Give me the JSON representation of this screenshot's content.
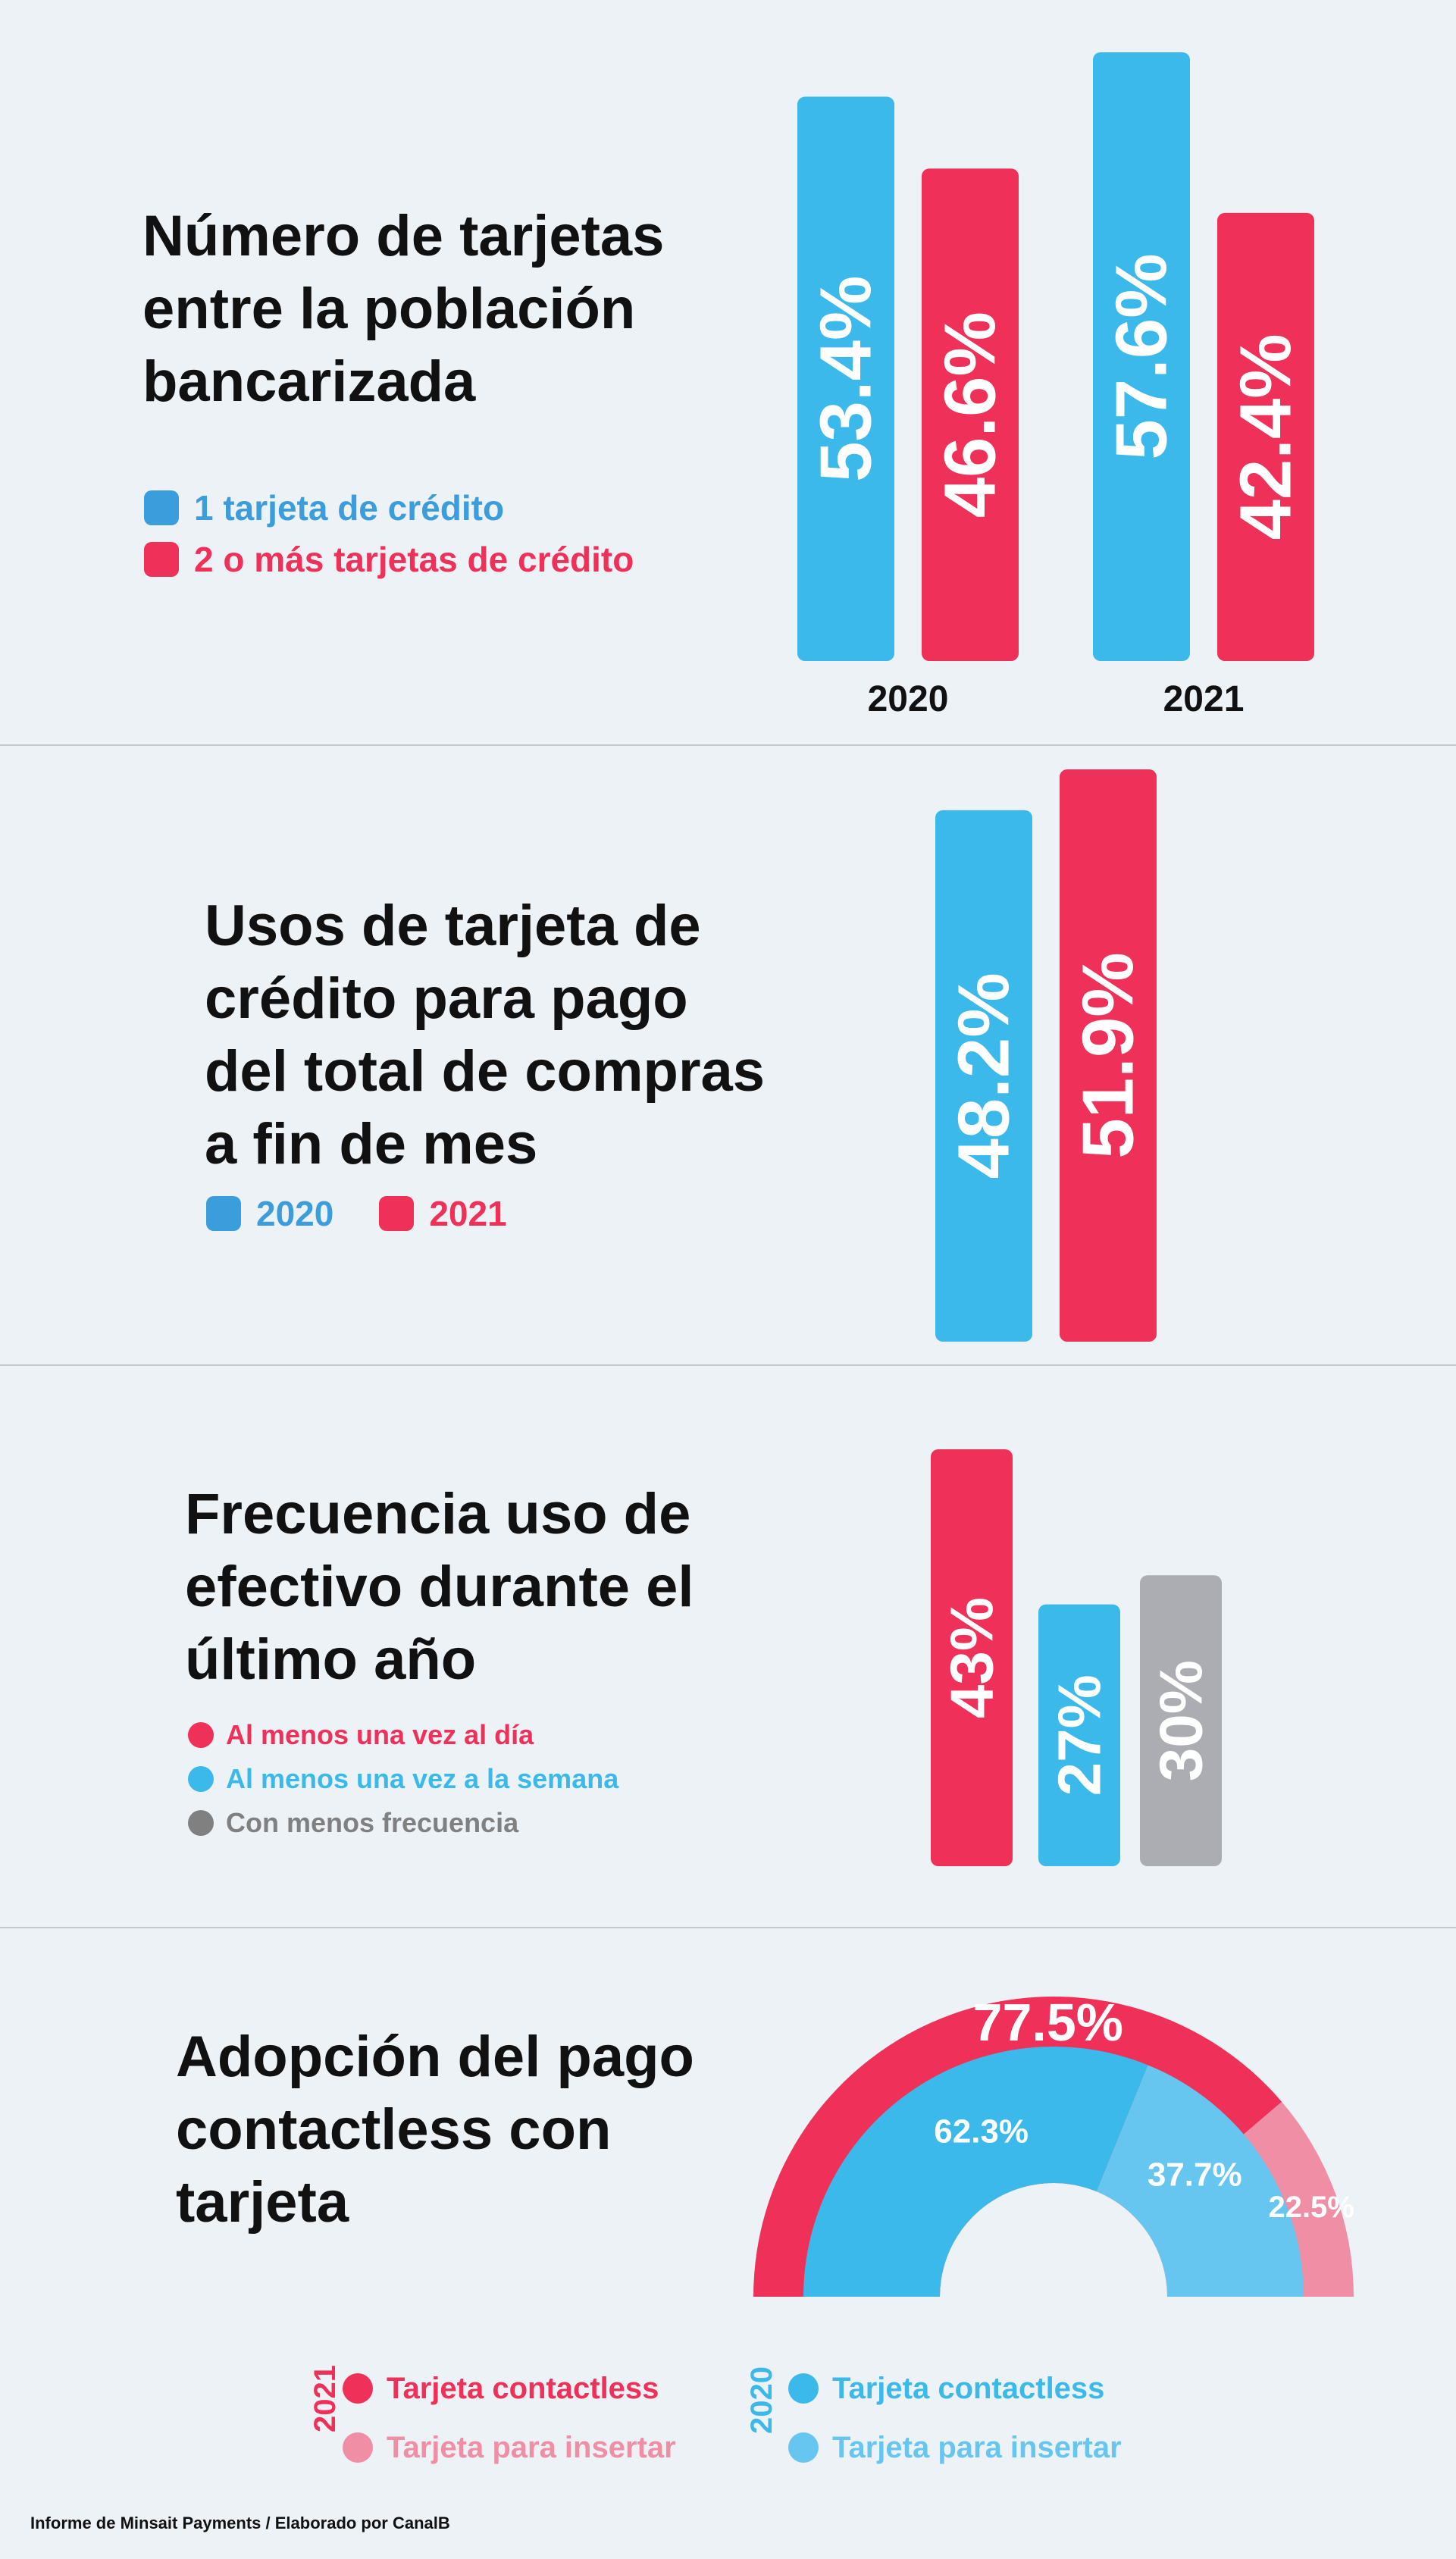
{
  "colors": {
    "blue": "#3bb9ea",
    "red": "#ef3058",
    "gray": "#acadb2",
    "pink": "#ef8ea4",
    "lightblue": "#67c6ef"
  },
  "section1": {
    "title": [
      "Número de tarjetas",
      "entre la población",
      "bancarizada"
    ],
    "legend": [
      {
        "label": "1 tarjeta de crédito",
        "color": "#3b9ddb"
      },
      {
        "label": "2 o más tarjetas de crédito",
        "color": "#ef3058"
      }
    ]
  },
  "section2": {
    "title": [
      "Usos de tarjeta de",
      "crédito para pago",
      "del total de compras",
      "a fin de mes"
    ],
    "legend": [
      {
        "label": "2020",
        "color": "#3b9ddb"
      },
      {
        "label": "2021",
        "color": "#ef3058"
      }
    ]
  },
  "section3": {
    "title": [
      "Frecuencia uso de",
      "efectivo durante el",
      "último año"
    ],
    "legend": [
      {
        "label": "Al menos una vez al día",
        "color": "#ef3058"
      },
      {
        "label": "Al menos una vez a la semana",
        "color": "#3bb9ea"
      },
      {
        "label": "Con menos frecuencia",
        "color": "#808080"
      }
    ]
  },
  "section4": {
    "title": [
      "Adopción del pago",
      "contactless con",
      "tarjeta"
    ],
    "legend_2021": {
      "year": "2021",
      "items": [
        {
          "label": "Tarjeta contactless",
          "color": "#ef3058"
        },
        {
          "label": "Tarjeta para insertar",
          "color": "#ef8ea4"
        }
      ]
    },
    "legend_2020": {
      "year": "2020",
      "items": [
        {
          "label": "Tarjeta contactless",
          "color": "#3bb9ea"
        },
        {
          "label": "Tarjeta para insertar",
          "color": "#67c6ef"
        }
      ]
    }
  },
  "source": "Informe de Minsait Payments / Elaborado por CanalB",
  "chart_data": [
    {
      "type": "bar",
      "title": "Número de tarjetas entre la población bancarizada",
      "categories": [
        "2020",
        "2021"
      ],
      "series": [
        {
          "name": "1 tarjeta de crédito",
          "values": [
            53.4,
            57.6
          ],
          "labels": [
            "53.4%",
            "57.6%"
          ],
          "color": "#3bb9ea"
        },
        {
          "name": "2 o más tarjetas de crédito",
          "values": [
            46.6,
            42.4
          ],
          "labels": [
            "46.6%",
            "42.4%"
          ],
          "color": "#ef3058"
        }
      ]
    },
    {
      "type": "bar",
      "title": "Usos de tarjeta de crédito para pago del total de compras a fin de mes",
      "categories": [
        "2020",
        "2021"
      ],
      "values": [
        48.2,
        51.9
      ],
      "labels": [
        "48.2%",
        "51.9%"
      ],
      "colors": [
        "#3bb9ea",
        "#ef3058"
      ]
    },
    {
      "type": "bar",
      "title": "Frecuencia uso de efectivo durante el último año",
      "categories": [
        "Al menos una vez al día",
        "Al menos una vez a la semana",
        "Con menos frecuencia"
      ],
      "values": [
        43,
        27,
        30
      ],
      "labels": [
        "43%",
        "27%",
        "30%"
      ],
      "colors": [
        "#ef3058",
        "#3bb9ea",
        "#acadb2"
      ]
    },
    {
      "type": "pie",
      "title": "Adopción del pago contactless con tarjeta",
      "series": [
        {
          "name": "2021",
          "categories": [
            "Tarjeta contactless",
            "Tarjeta para insertar"
          ],
          "values": [
            77.5,
            22.5
          ],
          "labels": [
            "77.5%",
            "22.5%"
          ],
          "colors": [
            "#ef3058",
            "#ef8ea4"
          ]
        },
        {
          "name": "2020",
          "categories": [
            "Tarjeta contactless",
            "Tarjeta para insertar"
          ],
          "values": [
            62.3,
            37.7
          ],
          "labels": [
            "62.3%",
            "37.7%"
          ],
          "colors": [
            "#3bb9ea",
            "#67c6ef"
          ]
        }
      ]
    }
  ]
}
